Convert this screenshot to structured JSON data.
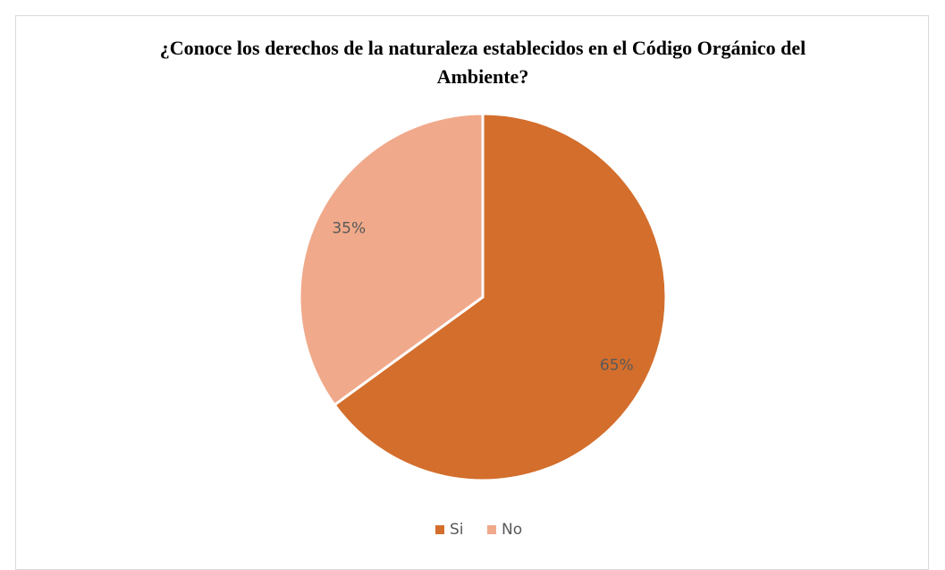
{
  "chart_data": {
    "type": "pie",
    "title": "¿Conoce los derechos de la naturaleza establecidos en el Código Orgánico del Ambiente?",
    "categories": [
      "Si",
      "No"
    ],
    "values": [
      65,
      35
    ],
    "value_labels": [
      "65%",
      "35%"
    ],
    "colors": [
      "#d36e2c",
      "#f0a98a"
    ],
    "legend": "bottom"
  }
}
